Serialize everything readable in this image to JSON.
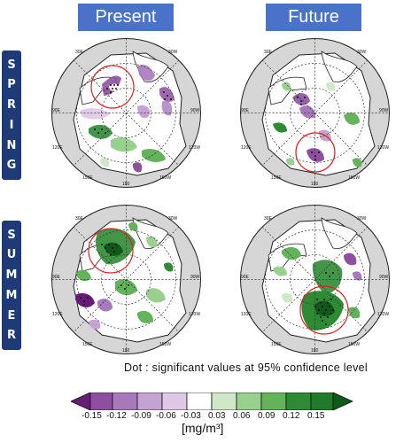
{
  "columns": [
    "Present",
    "Future"
  ],
  "rows": [
    {
      "label": "SPRING",
      "letters": [
        "S",
        "P",
        "R",
        "I",
        "N",
        "G"
      ]
    },
    {
      "label": "SUMMER",
      "letters": [
        "S",
        "U",
        "M",
        "M",
        "E",
        "R"
      ]
    }
  ],
  "map_lon_labels": {
    "tl": "30E",
    "tr": "30W",
    "l": "90E",
    "r": "90W",
    "bl": "120E",
    "br": "120W",
    "b1": "150E",
    "b2": "150W",
    "bottom": "180"
  },
  "note": "Dot : significant values at 95% confidence level",
  "colorbar": {
    "ticks": [
      "-0.15",
      "-0.12",
      "-0.09",
      "-0.06",
      "-0.03",
      "0.03",
      "0.06",
      "0.09",
      "0.12",
      "0.15"
    ],
    "colors": [
      "#6a1b7a",
      "#8f4fa0",
      "#a878bc",
      "#c4a2d2",
      "#ddc8e6",
      "#ffffff",
      "#cfe8c8",
      "#98d08e",
      "#62b359",
      "#2f8a34",
      "#0f5a1b"
    ],
    "units": "[mg/m³]"
  },
  "colors": {
    "header": "#4a72c8",
    "row_label": "#1f3a78",
    "highlight_circle": "#e02020"
  }
}
